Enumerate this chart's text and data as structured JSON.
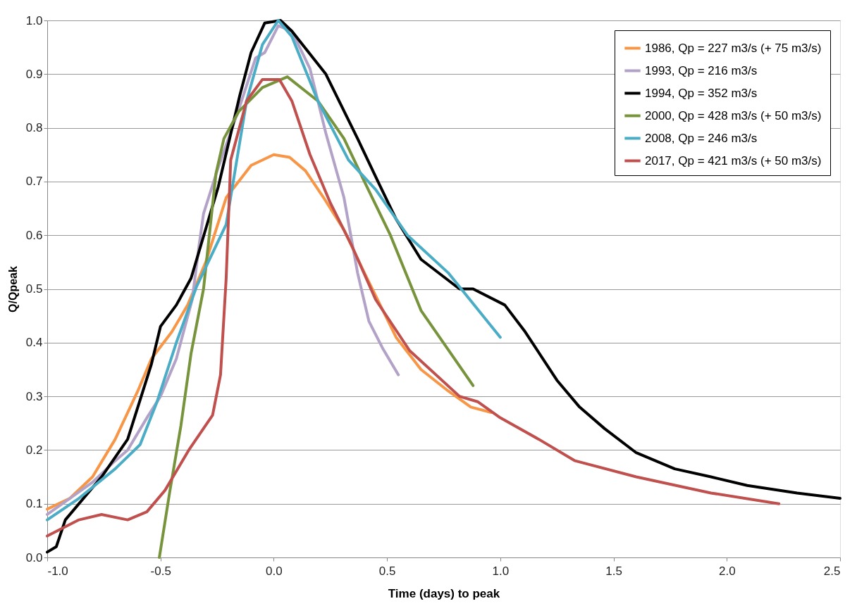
{
  "chart_data": {
    "type": "line",
    "xlabel": "Time (days) to peak",
    "ylabel": "Q/Qpeak",
    "xlim": [
      -1.0,
      2.5
    ],
    "ylim": [
      0.0,
      1.0
    ],
    "xticks": [
      {
        "value": -1.0,
        "label": "-1.0"
      },
      {
        "value": -0.5,
        "label": "-0.5"
      },
      {
        "value": 0.0,
        "label": "0.0"
      },
      0.5,
      {
        "value": 1.0,
        "label": "1.0"
      },
      1.5,
      {
        "value": 2.0,
        "label": "2.0"
      },
      2.5
    ],
    "yticks": [
      {
        "value": 0.0,
        "label": "0.0"
      },
      0.1,
      0.2,
      0.3,
      0.4,
      0.5,
      0.6,
      0.7,
      0.8,
      0.9,
      {
        "value": 1.0,
        "label": "1.0"
      }
    ],
    "grid": "y",
    "legend": "top right",
    "series": [
      {
        "name": "1986, Qp = 227 m3/s (+ 75 m3/s)",
        "color": "#f79646",
        "x": [
          -1.0,
          -0.9,
          -0.8,
          -0.7,
          -0.6,
          -0.54,
          -0.45,
          -0.38,
          -0.3,
          -0.21,
          -0.1,
          0.0,
          0.07,
          0.14,
          0.22,
          0.31,
          0.4,
          0.47,
          0.54,
          0.65,
          0.77,
          0.87,
          0.96
        ],
        "values": [
          0.09,
          0.11,
          0.15,
          0.22,
          0.31,
          0.37,
          0.42,
          0.47,
          0.55,
          0.67,
          0.73,
          0.75,
          0.745,
          0.72,
          0.67,
          0.61,
          0.53,
          0.47,
          0.41,
          0.35,
          0.31,
          0.28,
          0.27
        ]
      },
      {
        "name": "1993, Qp = 216 m3/s",
        "color": "#b3a2c7",
        "x": [
          -1.0,
          -0.9,
          -0.8,
          -0.7,
          -0.645,
          -0.56,
          -0.5,
          -0.43,
          -0.36,
          -0.33,
          -0.31,
          -0.25,
          -0.15,
          -0.08,
          -0.04,
          0.02,
          0.08,
          0.16,
          0.23,
          0.31,
          0.37,
          0.42,
          0.48,
          0.55
        ],
        "values": [
          0.08,
          0.11,
          0.14,
          0.18,
          0.2,
          0.26,
          0.3,
          0.37,
          0.48,
          0.58,
          0.64,
          0.72,
          0.84,
          0.93,
          0.94,
          0.99,
          0.98,
          0.91,
          0.79,
          0.67,
          0.53,
          0.44,
          0.39,
          0.34
        ]
      },
      {
        "name": "1994, Qp = 352 m3/s",
        "color": "#000000",
        "x": [
          -1.0,
          -0.96,
          -0.92,
          -0.76,
          -0.645,
          -0.54,
          -0.5,
          -0.43,
          -0.365,
          -0.245,
          -0.15,
          -0.1,
          -0.04,
          0.03,
          0.08,
          0.23,
          0.37,
          0.46,
          0.54,
          0.65,
          0.82,
          0.88,
          1.02,
          1.11,
          1.25,
          1.35,
          1.46,
          1.6,
          1.77,
          1.93,
          2.09,
          2.31,
          2.5
        ],
        "values": [
          0.01,
          0.02,
          0.07,
          0.15,
          0.22,
          0.36,
          0.43,
          0.47,
          0.52,
          0.69,
          0.86,
          0.94,
          0.995,
          1.0,
          0.98,
          0.9,
          0.78,
          0.7,
          0.63,
          0.555,
          0.5,
          0.5,
          0.47,
          0.42,
          0.33,
          0.28,
          0.24,
          0.195,
          0.165,
          0.15,
          0.134,
          0.12,
          0.11
        ]
      },
      {
        "name": "2000, Qp = 428 m3/s (+ 50 m3/s)",
        "color": "#77933c",
        "x": [
          -0.505,
          -0.46,
          -0.41,
          -0.365,
          -0.31,
          -0.255,
          -0.22,
          -0.155,
          -0.05,
          0.06,
          0.195,
          0.31,
          0.4,
          0.515,
          0.65,
          0.88
        ],
        "values": [
          0.0,
          0.12,
          0.245,
          0.38,
          0.5,
          0.715,
          0.78,
          0.83,
          0.875,
          0.895,
          0.85,
          0.78,
          0.7,
          0.6,
          0.46,
          0.32
        ]
      },
      {
        "name": "2008, Qp = 246 m3/s",
        "color": "#4bacc6",
        "x": [
          -1.0,
          -0.86,
          -0.7,
          -0.59,
          -0.515,
          -0.43,
          -0.34,
          -0.21,
          -0.12,
          -0.05,
          0.02,
          0.08,
          0.195,
          0.33,
          0.45,
          0.59,
          0.77,
          1.0
        ],
        "values": [
          0.07,
          0.11,
          0.165,
          0.21,
          0.29,
          0.4,
          0.505,
          0.62,
          0.85,
          0.955,
          1.0,
          0.97,
          0.85,
          0.74,
          0.685,
          0.6,
          0.53,
          0.41
        ]
      },
      {
        "name": "2017, Qp = 421 m3/s (+ 50 m3/s)",
        "color": "#c0504d",
        "x": [
          -1.0,
          -0.86,
          -0.76,
          -0.645,
          -0.56,
          -0.48,
          -0.375,
          -0.27,
          -0.235,
          -0.21,
          -0.19,
          -0.12,
          -0.05,
          0.025,
          0.08,
          0.16,
          0.25,
          0.345,
          0.45,
          0.6,
          0.82,
          0.9,
          1.0,
          1.17,
          1.33,
          1.6,
          1.93,
          2.23
        ],
        "values": [
          0.04,
          0.07,
          0.08,
          0.07,
          0.085,
          0.125,
          0.2,
          0.265,
          0.34,
          0.52,
          0.74,
          0.85,
          0.89,
          0.89,
          0.85,
          0.75,
          0.66,
          0.58,
          0.48,
          0.385,
          0.3,
          0.29,
          0.26,
          0.22,
          0.18,
          0.15,
          0.12,
          0.1
        ]
      }
    ]
  }
}
